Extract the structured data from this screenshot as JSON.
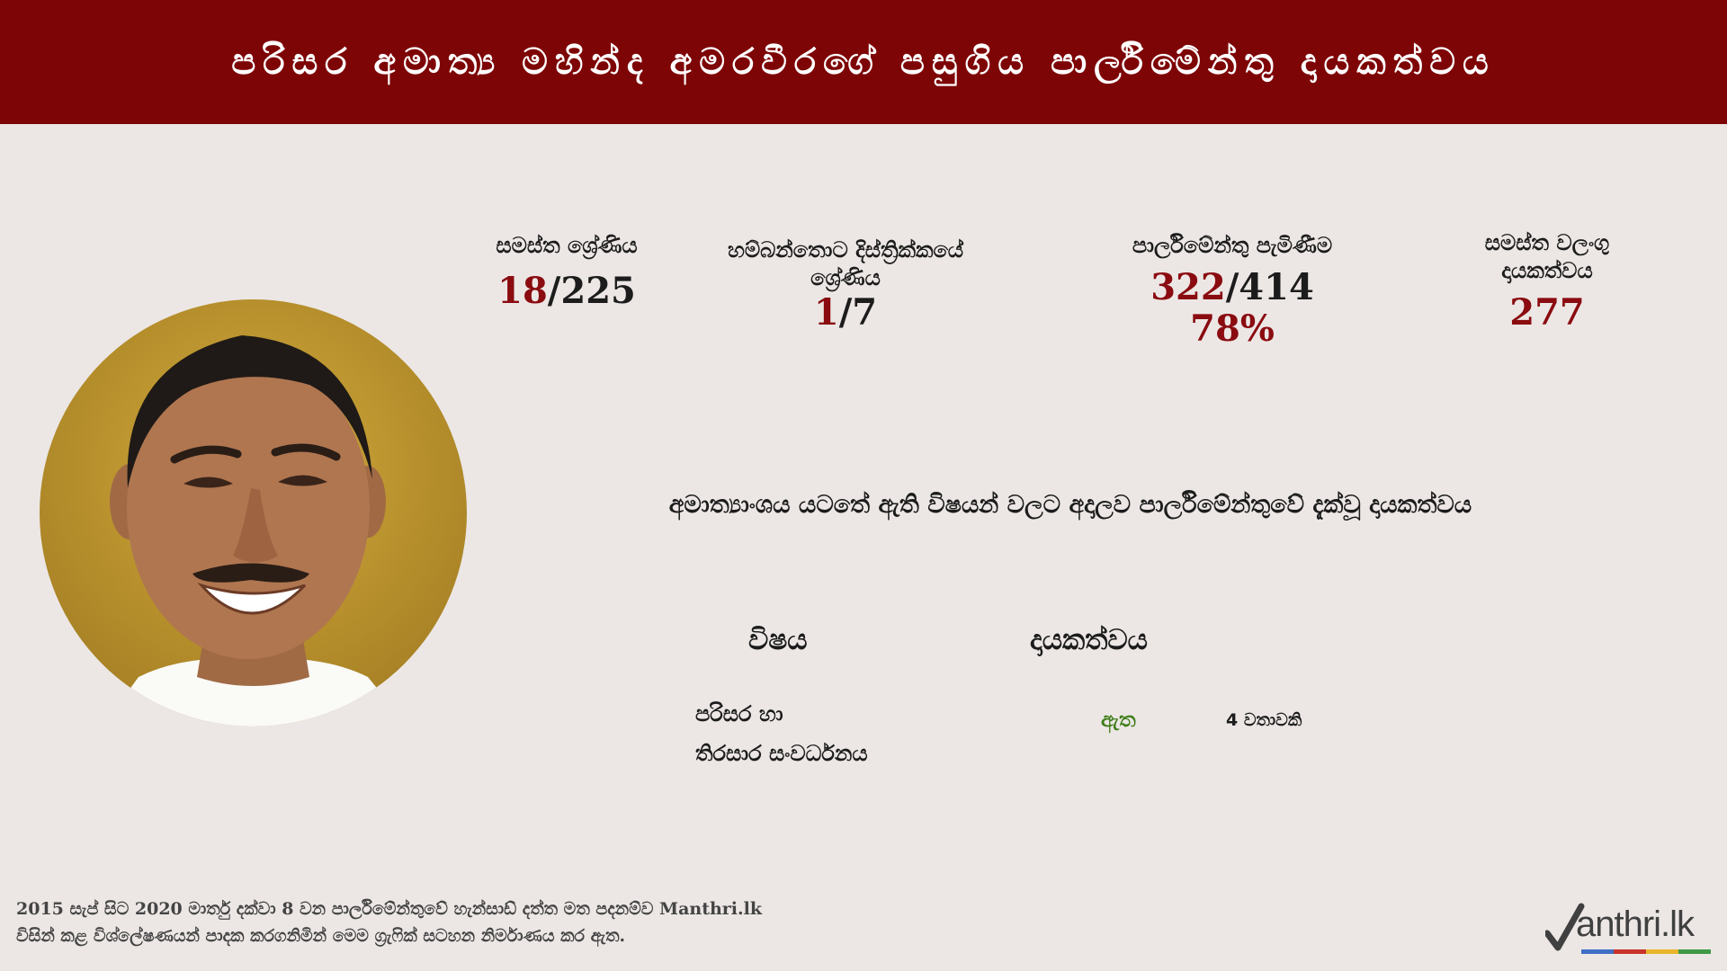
{
  "header": {
    "title": "පරිසර අමාත්‍ය මහින්ද අමරවීරගේ පසුගිය පාර්ලිමේන්තු දායකත්වය"
  },
  "stats": {
    "overall_rank": {
      "label": "සමස්ත ශ්‍රේණිය",
      "value": "18",
      "total": "/225"
    },
    "district_rank": {
      "label_line1": "හම්බන්තොට දිස්ත්‍රික්කයේ",
      "label_line2": "ශ්‍රේණිය",
      "value": "1",
      "total": "/7"
    },
    "attendance": {
      "label": "පාර්ලිමේන්තු පැමිණීම",
      "value": "322",
      "total": "/414",
      "percent": "78%"
    },
    "valid_contribution": {
      "label_line1": "සමස්ත වලංගු",
      "label_line2": "දායකත්වය",
      "value": "277"
    }
  },
  "ministry": {
    "subtitle": "අමාත්‍යාංශය යටතේ ඇති විෂයන් වලට අදාලව පාර්ලිමේන්තුවේ දැක්වූ දායකත්වය",
    "col_subject": "විෂය",
    "col_contribution": "දායකත්වය",
    "rows": [
      {
        "subject_line1": "පරිසර හා",
        "subject_line2": "තිරසාර සංවර්ධනය",
        "status": "ඇත",
        "count": "4 වතාවකි"
      }
    ]
  },
  "footer": {
    "line1": "2015 සැප් සිට 2020 මාර්තු දක්වා 8 වන පාර්ලිමේන්තුවේ හැන්සාඩ් දත්ත මත පදනම්ව Manthri.lk",
    "line2": "විසින් කළ විශ්ලේෂණයන් පාදක කරගනිමින් මෙම ග්‍රැෆික් සටහන නිර්මාණය කර ඇත.",
    "logo_text": "anthri.lk"
  },
  "colors": {
    "header_bg": "#7e0506",
    "page_bg": "#ece7e5",
    "accent_red": "#8a0b10",
    "status_green": "#3e7d18"
  }
}
